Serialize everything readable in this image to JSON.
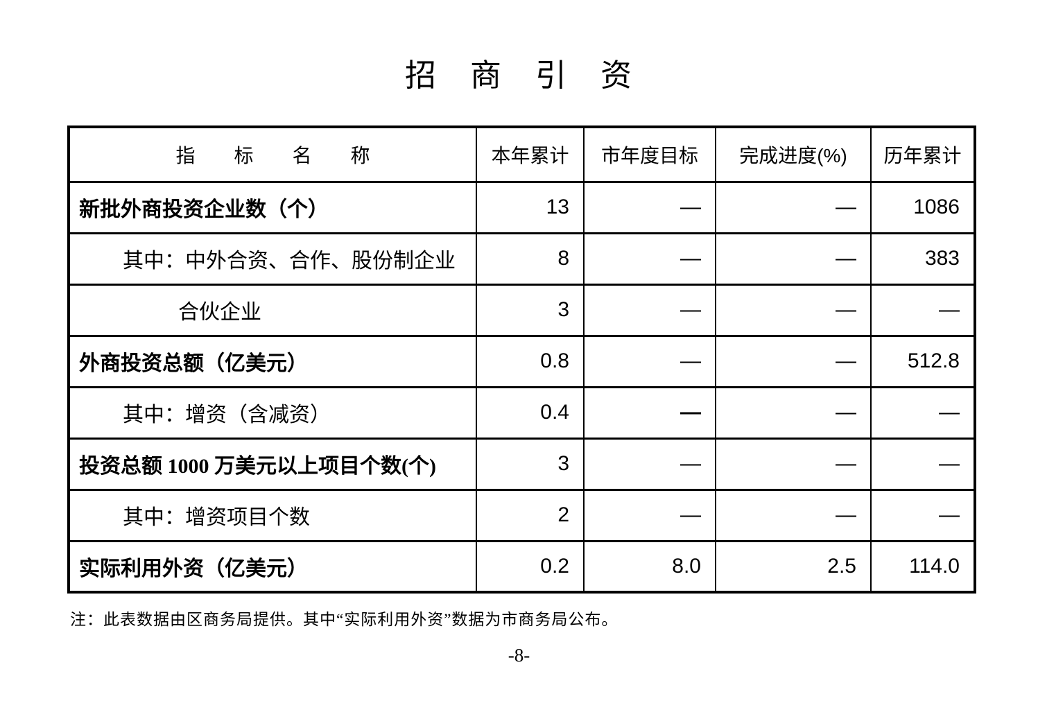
{
  "page": {
    "title": "招　商　引　资",
    "footnote": "注：此表数据由区商务局提供。其中“实际利用外资”数据为市商务局公布。",
    "page_number": "-8-"
  },
  "table": {
    "headers": [
      "指　　标　　名　　称",
      "本年累计",
      "市年度目标",
      "完成进度(%)",
      "历年累计"
    ],
    "rows": [
      {
        "label": "新批外商投资企业数（个）",
        "bold": true,
        "indent": 0,
        "values": [
          "13",
          "—",
          "—",
          "1086"
        ],
        "bold_value_cols": []
      },
      {
        "label": "其中：中外合资、合作、股份制企业",
        "bold": false,
        "indent": 1,
        "values": [
          "8",
          "—",
          "—",
          "383"
        ],
        "bold_value_cols": []
      },
      {
        "label": "合伙企业",
        "bold": false,
        "indent": 2,
        "values": [
          "3",
          "—",
          "—",
          "—"
        ],
        "bold_value_cols": []
      },
      {
        "label": "外商投资总额（亿美元）",
        "bold": true,
        "indent": 0,
        "values": [
          "0.8",
          "—",
          "—",
          "512.8"
        ],
        "bold_value_cols": []
      },
      {
        "label": "其中：增资（含减资）",
        "bold": false,
        "indent": 1,
        "values": [
          "0.4",
          "—",
          "—",
          "—"
        ],
        "bold_value_cols": [
          1
        ]
      },
      {
        "label": "投资总额 1000 万美元以上项目个数(个)",
        "bold": true,
        "indent": 0,
        "values": [
          "3",
          "—",
          "—",
          "—"
        ],
        "bold_value_cols": []
      },
      {
        "label": "其中：增资项目个数",
        "bold": false,
        "indent": 1,
        "values": [
          "2",
          "—",
          "—",
          "—"
        ],
        "bold_value_cols": []
      },
      {
        "label": "实际利用外资（亿美元）",
        "bold": true,
        "indent": 0,
        "values": [
          "0.2",
          "8.0",
          "2.5",
          "114.0"
        ],
        "bold_value_cols": []
      }
    ]
  }
}
